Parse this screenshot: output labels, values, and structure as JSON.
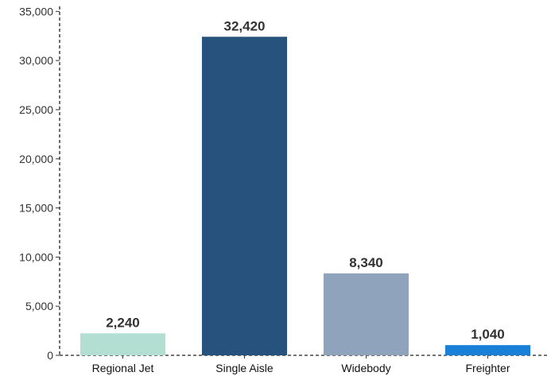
{
  "chart_data": {
    "type": "bar",
    "title": "",
    "xlabel": "",
    "ylabel": "",
    "categories": [
      "Regional Jet",
      "Single Aisle",
      "Widebody",
      "Freighter"
    ],
    "values": [
      2240,
      32420,
      8340,
      1040
    ],
    "value_labels": [
      "2,240",
      "32,420",
      "8,340",
      "1,040"
    ],
    "colors": [
      "#b2dfd2",
      "#28527e",
      "#8fa3bc",
      "#1a7fd6"
    ],
    "ylim": [
      0,
      36000
    ],
    "yticks": [
      0,
      5000,
      10000,
      15000,
      20000,
      25000,
      30000,
      35000
    ],
    "ytick_labels": [
      "0",
      "5,000",
      "10,000",
      "15,000",
      "20,000",
      "25,000",
      "30,000",
      "35,000"
    ],
    "grid": false,
    "legend": "none"
  }
}
